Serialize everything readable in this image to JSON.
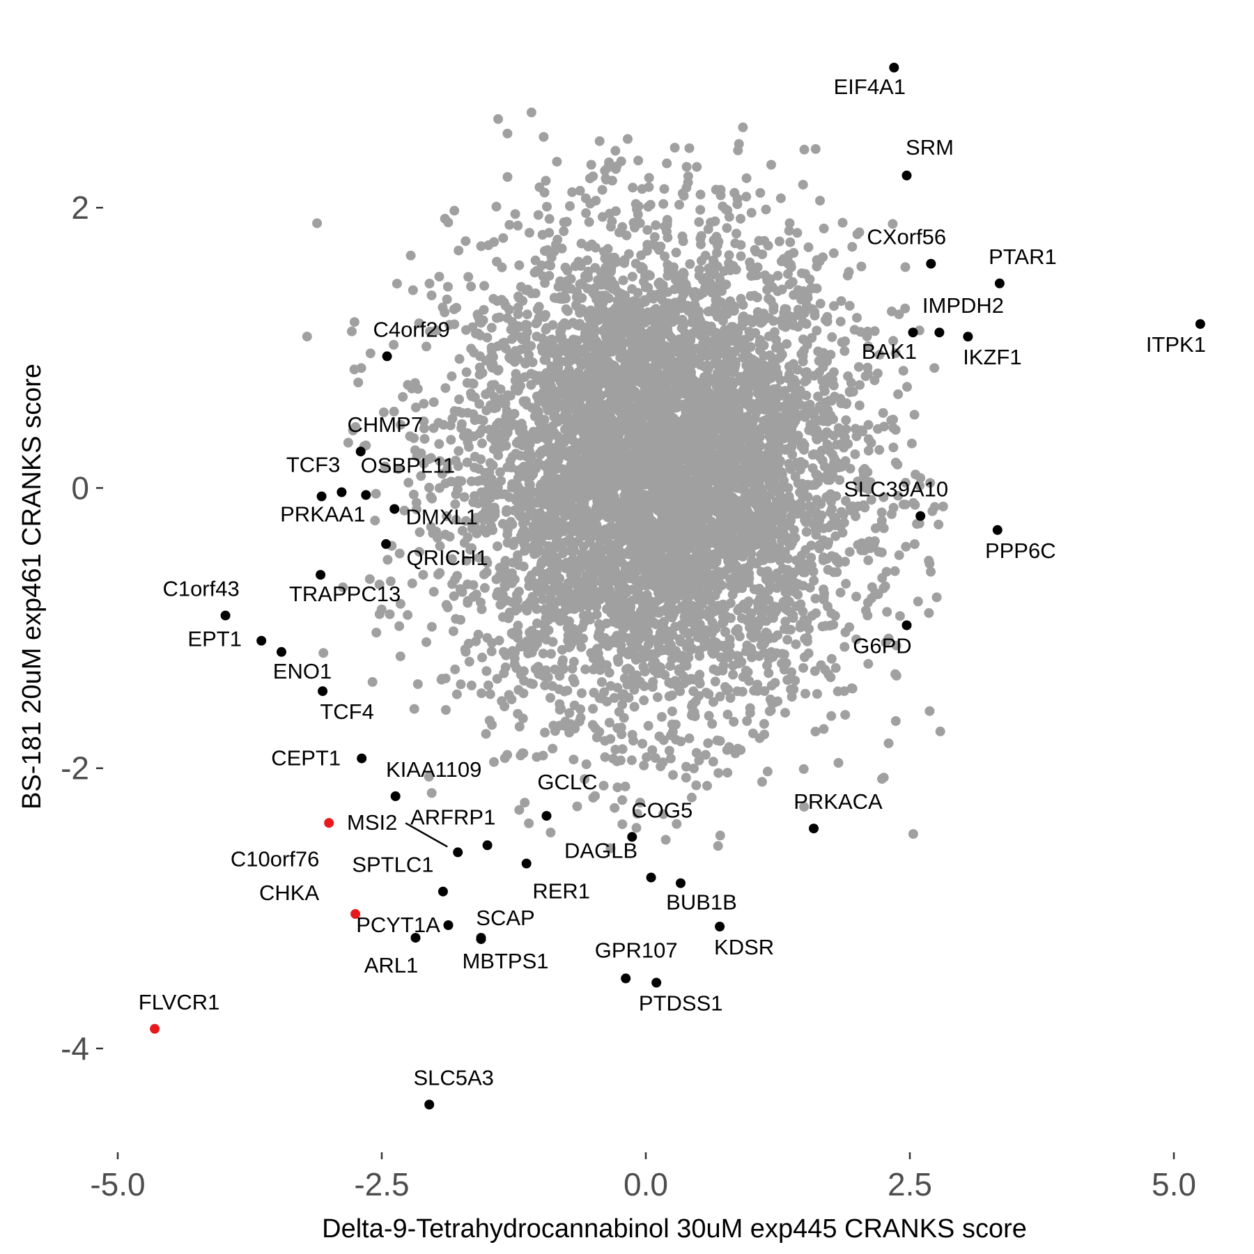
{
  "chart_data": {
    "type": "scatter",
    "title": "",
    "xlabel": "Delta-9-Tetrahydrocannabinol 30uM exp445 CRANKS score",
    "ylabel": "BS-181 20uM exp461 CRANKS score",
    "xlim": [
      -5.0,
      5.0
    ],
    "ylim": [
      -4.6,
      3.1
    ],
    "x_ticks": [
      {
        "value": -5.0,
        "label": "-5.0"
      },
      {
        "value": -2.5,
        "label": "-2.5"
      },
      {
        "value": 0.0,
        "label": "0.0"
      },
      {
        "value": 2.5,
        "label": "2.5"
      },
      {
        "value": 5.0,
        "label": "5.0"
      }
    ],
    "y_ticks": [
      {
        "value": 2,
        "label": "2"
      },
      {
        "value": 0,
        "label": "0"
      },
      {
        "value": -2,
        "label": "-2"
      },
      {
        "value": -4,
        "label": "-4"
      }
    ],
    "grid": false,
    "legend": "none",
    "colors": {
      "background_genes": "#a0a0a0",
      "highlight": "#000000",
      "red_highlight": "#e8191c"
    },
    "background_cloud": {
      "n_points": 6000,
      "center_x": 0.1,
      "center_y": 0.1,
      "sd_x": 0.95,
      "sd_y": 0.85,
      "color": "#a0a0a0"
    },
    "highlighted_points": [
      {
        "gene": "EIF4A1",
        "x": 2.35,
        "y": 3.0,
        "color": "#000000"
      },
      {
        "gene": "SRM",
        "x": 2.47,
        "y": 2.23,
        "color": "#000000"
      },
      {
        "gene": "CXorf56",
        "x": 2.7,
        "y": 1.6,
        "color": "#000000"
      },
      {
        "gene": "PTAR1",
        "x": 3.35,
        "y": 1.46,
        "color": "#000000"
      },
      {
        "gene": "ITPK1",
        "x": 5.25,
        "y": 1.17,
        "color": "#000000"
      },
      {
        "gene": "IMPDH2",
        "x": 2.53,
        "y": 1.11,
        "color": "#000000"
      },
      {
        "gene": "BAK1",
        "x": 2.78,
        "y": 1.11,
        "color": "#000000"
      },
      {
        "gene": "IKZF1",
        "x": 3.05,
        "y": 1.08,
        "color": "#000000"
      },
      {
        "gene": "SLC39A10",
        "x": 2.6,
        "y": -0.2,
        "color": "#000000"
      },
      {
        "gene": "PPP6C",
        "x": 3.33,
        "y": -0.3,
        "color": "#000000"
      },
      {
        "gene": "G6PD",
        "x": 2.47,
        "y": -0.98,
        "color": "#000000"
      },
      {
        "gene": "C4orf29",
        "x": -2.45,
        "y": 0.94,
        "color": "#000000"
      },
      {
        "gene": "CHMP7",
        "x": -2.7,
        "y": 0.26,
        "color": "#000000"
      },
      {
        "gene": "TCF3",
        "x": -3.07,
        "y": -0.06,
        "color": "#000000"
      },
      {
        "gene": "OSBPL11",
        "x": -2.88,
        "y": -0.03,
        "color": "#000000"
      },
      {
        "gene": "PRKAA1",
        "x": -2.65,
        "y": -0.05,
        "color": "#000000"
      },
      {
        "gene": "DMXL1",
        "x": -2.38,
        "y": -0.15,
        "color": "#000000"
      },
      {
        "gene": "QRICH1",
        "x": -2.46,
        "y": -0.4,
        "color": "#000000"
      },
      {
        "gene": "TRAPPC13",
        "x": -3.08,
        "y": -0.62,
        "color": "#000000"
      },
      {
        "gene": "C1orf43",
        "x": -3.98,
        "y": -0.91,
        "color": "#000000"
      },
      {
        "gene": "EPT1",
        "x": -3.64,
        "y": -1.09,
        "color": "#000000"
      },
      {
        "gene": "ENO1",
        "x": -3.45,
        "y": -1.17,
        "color": "#000000"
      },
      {
        "gene": "TCF4",
        "x": -3.06,
        "y": -1.45,
        "color": "#000000"
      },
      {
        "gene": "CEPT1",
        "x": -2.69,
        "y": -1.93,
        "color": "#000000"
      },
      {
        "gene": "KIAA1109",
        "x": -2.37,
        "y": -2.2,
        "color": "#000000"
      },
      {
        "gene": "MSI2",
        "x": -3.0,
        "y": -2.39,
        "color": "#e8191c"
      },
      {
        "gene": "ARFRP1",
        "x": -1.78,
        "y": -2.6,
        "color": "#000000"
      },
      {
        "gene": "C10orf76",
        "x": -1.5,
        "y": -2.55,
        "color": "#000000"
      },
      {
        "gene": "GCLC",
        "x": -0.94,
        "y": -2.34,
        "color": "#000000"
      },
      {
        "gene": "COG5",
        "x": -0.13,
        "y": -2.49,
        "color": "#000000"
      },
      {
        "gene": "PRKACA",
        "x": 1.59,
        "y": -2.43,
        "color": "#000000"
      },
      {
        "gene": "DAGLB",
        "x": 0.05,
        "y": -2.78,
        "color": "#000000"
      },
      {
        "gene": "RER1",
        "x": -1.13,
        "y": -2.68,
        "color": "#000000"
      },
      {
        "gene": "BUB1B",
        "x": 0.33,
        "y": -2.82,
        "color": "#000000"
      },
      {
        "gene": "SPTLC1",
        "x": -1.92,
        "y": -2.88,
        "color": "#000000"
      },
      {
        "gene": "CHKA",
        "x": -2.75,
        "y": -3.04,
        "color": "#e8191c"
      },
      {
        "gene": "PCYT1A",
        "x": -1.87,
        "y": -3.12,
        "color": "#000000"
      },
      {
        "gene": "SCAP",
        "x": -1.56,
        "y": -3.21,
        "color": "#000000"
      },
      {
        "gene": "ARL1",
        "x": -2.18,
        "y": -3.21,
        "color": "#000000"
      },
      {
        "gene": "MBTPS1",
        "x": -1.56,
        "y": -3.22,
        "color": "#000000"
      },
      {
        "gene": "KDSR",
        "x": 0.7,
        "y": -3.13,
        "color": "#000000"
      },
      {
        "gene": "GPR107",
        "x": -0.19,
        "y": -3.5,
        "color": "#000000"
      },
      {
        "gene": "PTDSS1",
        "x": 0.1,
        "y": -3.53,
        "color": "#000000"
      },
      {
        "gene": "FLVCR1",
        "x": -4.65,
        "y": -3.86,
        "color": "#e8191c"
      },
      {
        "gene": "SLC5A3",
        "x": -2.05,
        "y": -4.4,
        "color": "#000000"
      }
    ]
  }
}
